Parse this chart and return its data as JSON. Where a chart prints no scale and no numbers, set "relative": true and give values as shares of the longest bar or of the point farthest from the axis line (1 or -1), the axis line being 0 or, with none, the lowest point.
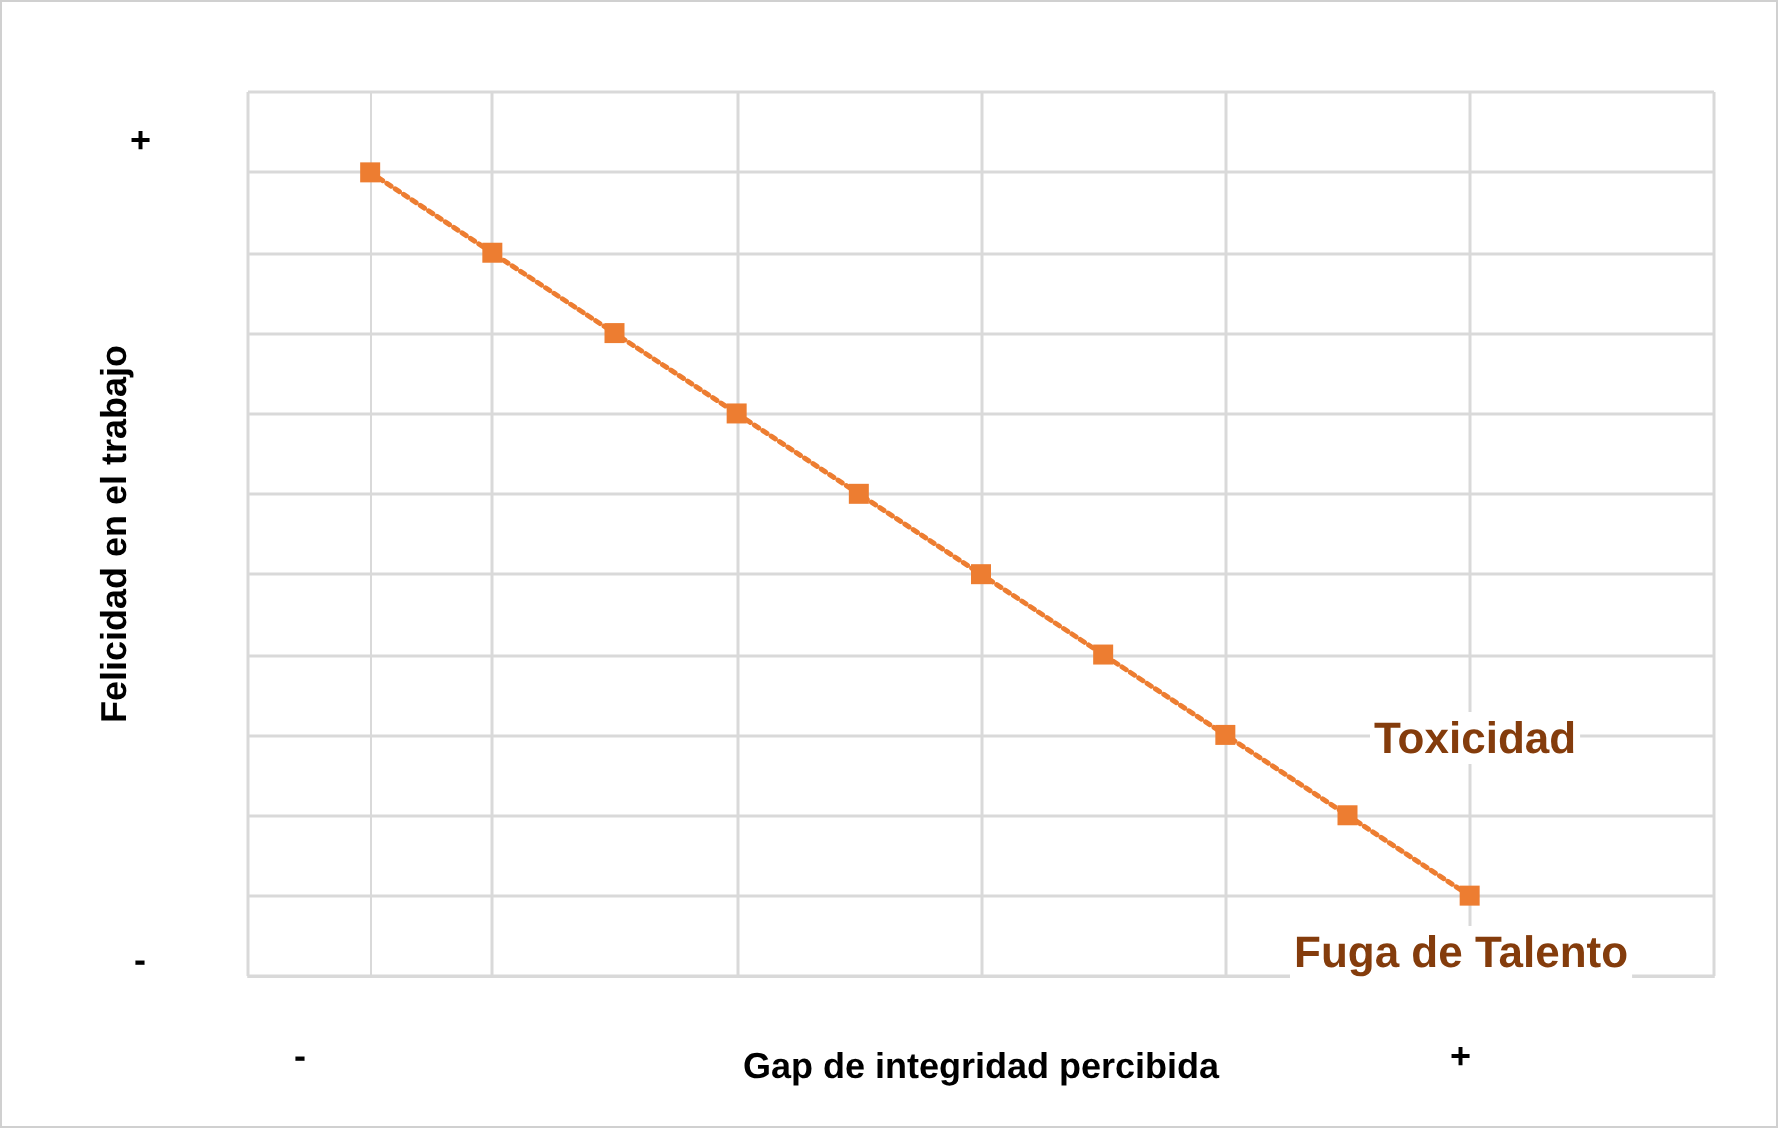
{
  "chart_data": {
    "type": "line",
    "relative": true,
    "xlabel": "Gap de integridad percibida",
    "ylabel": "Felicidad en el trabajo",
    "categories": [
      null,
      null,
      null,
      null,
      null,
      null,
      null,
      null,
      null,
      null
    ],
    "series": [
      {
        "color": "#ed7d31",
        "values": [
          1,
          0.9,
          0.8,
          0.7,
          0.6,
          0.5,
          0.4,
          0.3,
          0.2,
          0.1
        ]
      }
    ],
    "marker": "square",
    "line_style": "dotted",
    "grid": true,
    "annotations": [
      "+",
      "-",
      "-",
      "+",
      "Toxicidad",
      "Fuga de Talento"
    ]
  }
}
